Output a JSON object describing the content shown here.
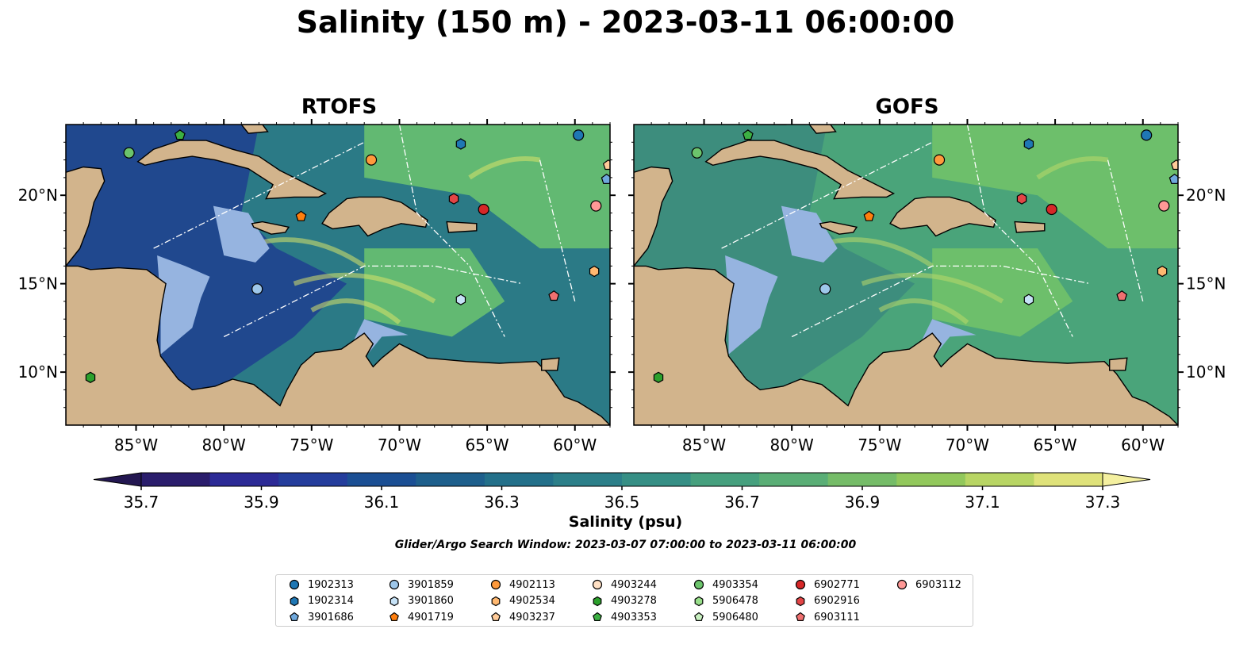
{
  "title": "Salinity (150 m) - 2023-03-11 06:00:00",
  "panels": [
    {
      "title": "RTOFS",
      "colors": {
        "base": "#1f3f8f",
        "mid": "#2b7a86",
        "hi": "#6cc46e",
        "peak": "#d8e46a"
      }
    },
    {
      "title": "GOFS",
      "colors": {
        "base": "#3b8a7e",
        "mid": "#4aa47a",
        "hi": "#73c468",
        "peak": "#b9d86a"
      }
    }
  ],
  "map": {
    "lon_ticks": [
      "85°W",
      "80°W",
      "75°W",
      "70°W",
      "65°W",
      "60°W"
    ],
    "lat_ticks": [
      "20°N",
      "15°N",
      "10°N"
    ],
    "land_color": "#d2b48c",
    "shelf_color": "#96b4e0"
  },
  "colorbar": {
    "label": "Salinity (psu)",
    "ticks": [
      "35.7",
      "35.9",
      "36.1",
      "36.3",
      "36.5",
      "36.7",
      "36.9",
      "37.1",
      "37.3"
    ],
    "colors": [
      "#2a1d6c",
      "#2c2a96",
      "#243d9c",
      "#1b4f94",
      "#1e5f8c",
      "#23708a",
      "#2c7f89",
      "#368f85",
      "#46a07e",
      "#5aae76",
      "#75bc68",
      "#92c85c",
      "#b8d564",
      "#dfe27a"
    ],
    "under_color": "#231751",
    "over_color": "#f4f0a0"
  },
  "search_window": "Glider/Argo Search Window: 2023-03-07 07:00:00 to 2023-03-11 06:00:00",
  "legend": {
    "items": [
      {
        "id": "1902313",
        "color": "#1f77b4",
        "marker": "circle"
      },
      {
        "id": "1902314",
        "color": "#1f77b4",
        "marker": "hexagon"
      },
      {
        "id": "3901686",
        "color": "#6fa8dc",
        "marker": "pentagon"
      },
      {
        "id": "3901859",
        "color": "#9ec7ea",
        "marker": "circle"
      },
      {
        "id": "3901860",
        "color": "#c6e2f7",
        "marker": "hexagon"
      },
      {
        "id": "4901719",
        "color": "#ff7f0e",
        "marker": "pentagon"
      },
      {
        "id": "4902113",
        "color": "#ff9a3c",
        "marker": "circle"
      },
      {
        "id": "4902534",
        "color": "#ffb870",
        "marker": "hexagon"
      },
      {
        "id": "4903237",
        "color": "#ffcb99",
        "marker": "pentagon"
      },
      {
        "id": "4903244",
        "color": "#ffe0c4",
        "marker": "circle"
      },
      {
        "id": "4903278",
        "color": "#2ca02c",
        "marker": "hexagon"
      },
      {
        "id": "4903353",
        "color": "#3cb043",
        "marker": "pentagon"
      },
      {
        "id": "4903354",
        "color": "#6cc46c",
        "marker": "circle"
      },
      {
        "id": "5906478",
        "color": "#98df8a",
        "marker": "hexagon"
      },
      {
        "id": "5906480",
        "color": "#c8f0c0",
        "marker": "pentagon"
      },
      {
        "id": "6902771",
        "color": "#d62728",
        "marker": "circle"
      },
      {
        "id": "6902916",
        "color": "#e34546",
        "marker": "hexagon"
      },
      {
        "id": "6903111",
        "color": "#f07070",
        "marker": "pentagon"
      },
      {
        "id": "6903112",
        "color": "#ff9896",
        "marker": "circle"
      }
    ]
  },
  "floats": [
    {
      "id": "1902313",
      "lon": -59.8,
      "lat": 23.4
    },
    {
      "id": "1902314",
      "lon": -66.5,
      "lat": 22.9
    },
    {
      "id": "3901686",
      "lon": -58.2,
      "lat": 20.9
    },
    {
      "id": "3901859",
      "lon": -78.1,
      "lat": 14.7
    },
    {
      "id": "3901860",
      "lon": -66.5,
      "lat": 14.1
    },
    {
      "id": "4901719",
      "lon": -75.6,
      "lat": 18.8
    },
    {
      "id": "4902113",
      "lon": -71.6,
      "lat": 22.0
    },
    {
      "id": "4902534",
      "lon": -58.9,
      "lat": 15.7
    },
    {
      "id": "4903237",
      "lon": -58.1,
      "lat": 21.7
    },
    {
      "id": "4903278",
      "lon": -87.6,
      "lat": 9.7
    },
    {
      "id": "4903353",
      "lon": -82.5,
      "lat": 23.4
    },
    {
      "id": "4903354",
      "lon": -85.4,
      "lat": 22.4
    },
    {
      "id": "6902771",
      "lon": -65.2,
      "lat": 19.2
    },
    {
      "id": "6902916",
      "lon": -66.9,
      "lat": 19.8
    },
    {
      "id": "6903111",
      "lon": -61.2,
      "lat": 14.3
    },
    {
      "id": "6903112",
      "lon": -58.8,
      "lat": 19.4
    }
  ]
}
